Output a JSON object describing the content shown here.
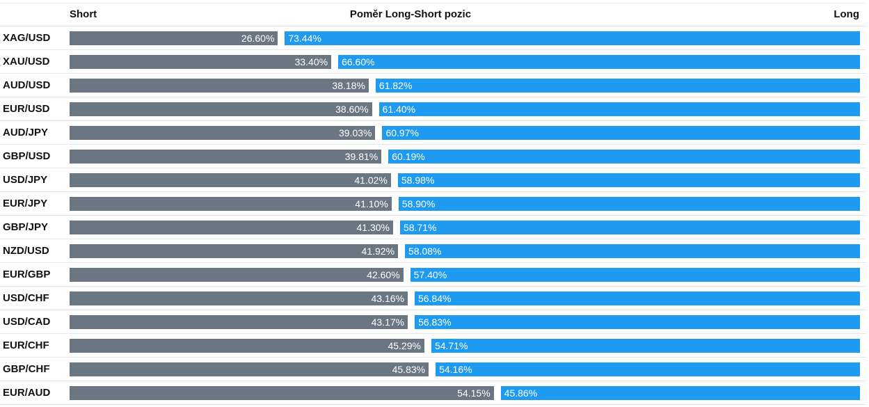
{
  "header": {
    "short_label": "Short",
    "title": "Poměr Long-Short pozic",
    "long_label": "Long"
  },
  "colors": {
    "short": "#6b7683",
    "long": "#1e9bf0"
  },
  "chart_data": {
    "type": "bar",
    "title": "Poměr Long-Short pozic",
    "categories": [
      "XAG/USD",
      "XAU/USD",
      "AUD/USD",
      "EUR/USD",
      "AUD/JPY",
      "GBP/USD",
      "USD/JPY",
      "EUR/JPY",
      "GBP/JPY",
      "NZD/USD",
      "EUR/GBP",
      "USD/CHF",
      "USD/CAD",
      "EUR/CHF",
      "GBP/CHF",
      "EUR/AUD"
    ],
    "series": [
      {
        "name": "Short",
        "values": [
          26.6,
          33.4,
          38.18,
          38.6,
          39.03,
          39.81,
          41.02,
          41.1,
          41.3,
          41.92,
          42.6,
          43.16,
          43.17,
          45.29,
          45.83,
          54.15
        ],
        "labels": [
          "26.60%",
          "33.40%",
          "38.18%",
          "38.60%",
          "39.03%",
          "39.81%",
          "41.02%",
          "41.10%",
          "41.30%",
          "41.92%",
          "42.60%",
          "43.16%",
          "43.17%",
          "45.29%",
          "45.83%",
          "54.15%"
        ]
      },
      {
        "name": "Long",
        "values": [
          73.44,
          66.6,
          61.82,
          61.4,
          60.97,
          60.19,
          58.98,
          58.9,
          58.71,
          58.08,
          57.4,
          56.84,
          56.83,
          54.71,
          54.16,
          45.86
        ],
        "labels": [
          "73.44%",
          "66.60%",
          "61.82%",
          "61.40%",
          "60.97%",
          "60.19%",
          "58.98%",
          "58.90%",
          "58.71%",
          "58.08%",
          "57.40%",
          "56.84%",
          "56.83%",
          "54.71%",
          "54.16%",
          "45.86%"
        ]
      }
    ],
    "xlim": [
      0,
      100
    ],
    "stacked": true,
    "orientation": "horizontal"
  }
}
